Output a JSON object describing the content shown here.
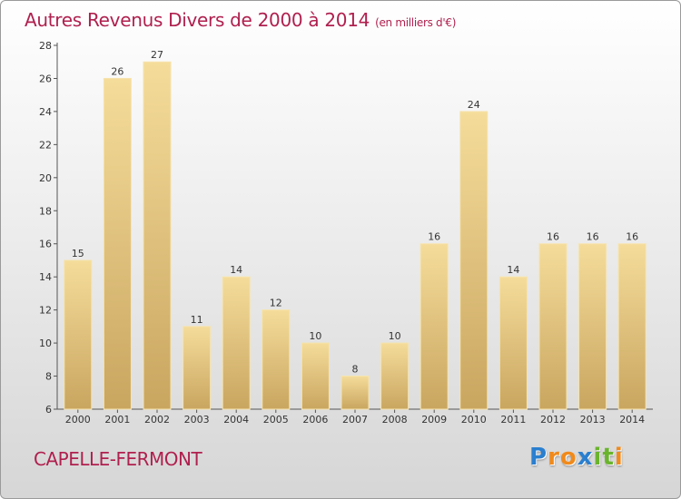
{
  "chart_data": {
    "type": "bar",
    "title": "Autres Revenus Divers de 2000 à 2014",
    "subtitle": "(en milliers d'€)",
    "categories": [
      "2000",
      "2001",
      "2002",
      "2003",
      "2004",
      "2005",
      "2006",
      "2007",
      "2008",
      "2009",
      "2010",
      "2011",
      "2012",
      "2013",
      "2014"
    ],
    "values": [
      15,
      26,
      27,
      11,
      14,
      12,
      10,
      8,
      10,
      16,
      24,
      14,
      16,
      16,
      16
    ],
    "ylim": [
      6,
      28
    ],
    "yticks": [
      6,
      8,
      10,
      12,
      14,
      16,
      18,
      20,
      22,
      24,
      26,
      28
    ],
    "grid": false,
    "bar_color": "#e9c97f",
    "title_color": "#b0204f"
  },
  "footer": {
    "commune": "CAPELLE-FERMONT",
    "logo_letters": [
      "P",
      "r",
      "o",
      "x",
      "i",
      "t",
      "i"
    ],
    "logo_colors": [
      "#2a7fcf",
      "#f08a1c",
      "#f08a1c",
      "#2a7fcf",
      "#6ab42d",
      "#6ab42d",
      "#f08a1c"
    ]
  }
}
